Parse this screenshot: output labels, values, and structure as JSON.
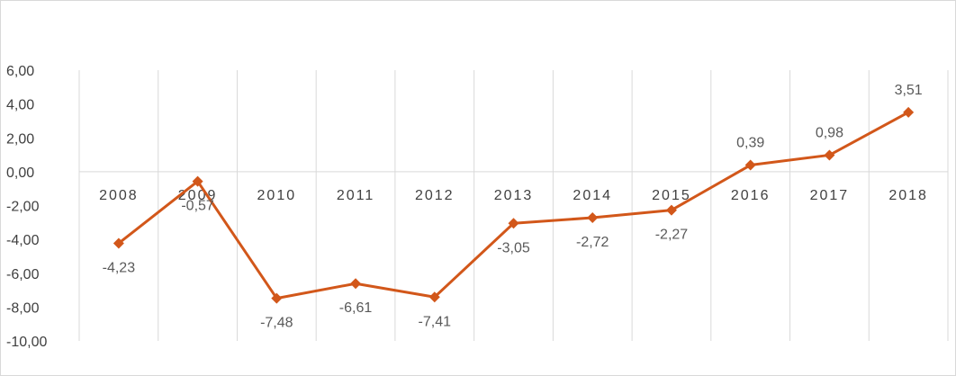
{
  "chart_data": {
    "type": "line",
    "title": "",
    "xlabel": "",
    "ylabel": "",
    "categories": [
      "2008",
      "2009",
      "2010",
      "2011",
      "2012",
      "2013",
      "2014",
      "2015",
      "2016",
      "2017",
      "2018"
    ],
    "series": [
      {
        "values": [
          -4.23,
          -0.57,
          -7.48,
          -6.61,
          -7.41,
          -3.05,
          -2.72,
          -2.27,
          0.39,
          0.98,
          3.51
        ],
        "labels": [
          "-4,23",
          "-0,57",
          "-7,48",
          "-6,61",
          "-7,41",
          "-3,05",
          "-2,72",
          "-2,27",
          "0,39",
          "0,98",
          "3,51"
        ],
        "color": "#d2571a",
        "marker": "diamond"
      }
    ],
    "ylim": [
      -10,
      6
    ],
    "yticks": [
      6,
      4,
      2,
      0,
      -2,
      -4,
      -6,
      -8,
      -10
    ],
    "ytick_labels": [
      "6,00",
      "4,00",
      "2,00",
      "0,00",
      "-2,00",
      "-4,00",
      "-6,00",
      "-8,00",
      "-10,00"
    ],
    "grid": "vertical",
    "legend": "none",
    "colors": {
      "line": "#d2571a",
      "grid": "#d9d9d9",
      "axis": "#d9d9d9",
      "text": "#404040",
      "label": "#595959"
    }
  }
}
